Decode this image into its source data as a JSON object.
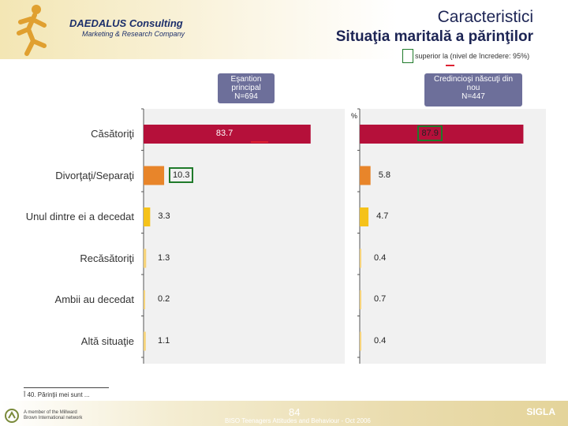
{
  "header": {
    "brand_name": "DAEDALUS Consulting",
    "brand_tagline": "Marketing & Research Company",
    "title": "Caracteristici",
    "subtitle": "Situaţia maritală a părinţilor",
    "significance_note": "superior la (nivel de încredere: 95%)"
  },
  "groups": {
    "main": {
      "label": "Eşantion principal",
      "n": "N=694"
    },
    "sub": {
      "label": "Credincioşi născuţi din nou",
      "n": "N=447"
    }
  },
  "chart_data": {
    "type": "bar",
    "orientation": "horizontal",
    "unit": "%",
    "categories": [
      "Căsătoriţi",
      "Divorţaţi/Separaţi",
      "Unul dintre ei a decedat",
      "Recăsătoriţi",
      "Ambii au decedat",
      "Altă situaţie"
    ],
    "series": [
      {
        "name": "Eşantion principal",
        "values": [
          83.7,
          10.3,
          3.3,
          1.3,
          0.2,
          1.1
        ],
        "value_labels": [
          "83.7",
          "10.3",
          "3.3",
          "1.3",
          "0.2",
          "1.1"
        ]
      },
      {
        "name": "Credincioşi născuţi din nou",
        "values": [
          87.9,
          5.8,
          4.7,
          0.4,
          0.7,
          0.4
        ],
        "value_labels": [
          "87.9",
          "5.8",
          "4.7",
          "0.4",
          "0.7",
          "0.4"
        ]
      }
    ],
    "xlim": [
      0,
      100
    ],
    "grid": false,
    "colors": {
      "main": "#b5103a",
      "secondary": "#e8852a",
      "tertiary": "#f5c21a",
      "minor": "#f6d37a"
    },
    "significant": {
      "main": [
        1
      ],
      "sub": [
        0
      ]
    }
  },
  "footnote": "Î 40. Părinţii mei sunt ...",
  "footer": {
    "page": "84",
    "study": "BISO Teenagers Attitudes and Behaviour - Oct 2006",
    "brand": "SIGLA",
    "network": "A member of the Millward Brown International network"
  }
}
